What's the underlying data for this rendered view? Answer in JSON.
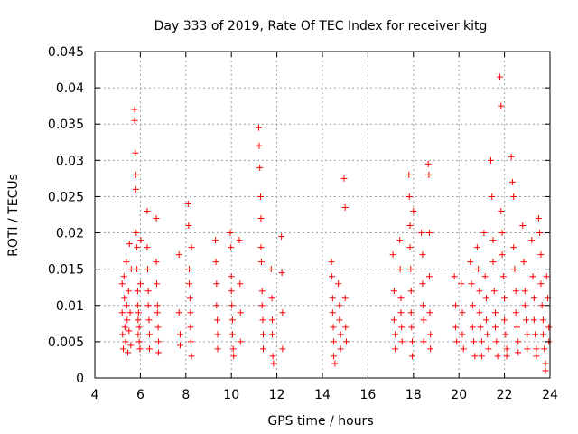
{
  "chart_data": {
    "type": "scatter",
    "title": "Day 333 of 2019, Rate Of TEC Index for receiver kitg",
    "xlabel": "GPS time / hours",
    "ylabel": "ROTI / TECUs",
    "xlim": [
      4,
      24
    ],
    "ylim": [
      0,
      0.045
    ],
    "x_ticks": [
      4,
      6,
      8,
      10,
      12,
      14,
      16,
      18,
      20,
      22,
      24
    ],
    "x_tick_labels": [
      "4",
      "6",
      "8",
      "10",
      "12",
      "14",
      "16",
      "18",
      "20",
      "22",
      "24"
    ],
    "y_ticks": [
      0,
      0.005,
      0.01,
      0.015,
      0.02,
      0.025,
      0.03,
      0.035,
      0.04,
      0.045
    ],
    "y_tick_labels": [
      "0",
      "0.005",
      "0.01",
      "0.015",
      "0.02",
      "0.025",
      "0.03",
      "0.035",
      "0.04",
      "0.045"
    ],
    "grid": true,
    "marker": "+",
    "marker_color": "#ff0000",
    "series": [
      {
        "name": "kitg",
        "points": [
          [
            5.2,
            0.013
          ],
          [
            5.2,
            0.009
          ],
          [
            5.22,
            0.006
          ],
          [
            5.25,
            0.004
          ],
          [
            5.28,
            0.014
          ],
          [
            5.3,
            0.011
          ],
          [
            5.32,
            0.007
          ],
          [
            5.35,
            0.005
          ],
          [
            5.38,
            0.016
          ],
          [
            5.4,
            0.01
          ],
          [
            5.42,
            0.008
          ],
          [
            5.45,
            0.0035
          ],
          [
            5.48,
            0.012
          ],
          [
            5.5,
            0.0065
          ],
          [
            5.52,
            0.0185
          ],
          [
            5.55,
            0.009
          ],
          [
            5.58,
            0.0045
          ],
          [
            5.6,
            0.015
          ],
          [
            5.75,
            0.037
          ],
          [
            5.75,
            0.0355
          ],
          [
            5.78,
            0.031
          ],
          [
            5.8,
            0.028
          ],
          [
            5.8,
            0.026
          ],
          [
            5.82,
            0.02
          ],
          [
            5.85,
            0.018
          ],
          [
            5.85,
            0.015
          ],
          [
            5.88,
            0.012
          ],
          [
            5.88,
            0.01
          ],
          [
            5.9,
            0.008
          ],
          [
            5.9,
            0.006
          ],
          [
            5.92,
            0.009
          ],
          [
            5.95,
            0.007
          ],
          [
            5.95,
            0.005
          ],
          [
            5.98,
            0.004
          ],
          [
            6.0,
            0.013
          ],
          [
            6.02,
            0.019
          ],
          [
            6.3,
            0.023
          ],
          [
            6.3,
            0.018
          ],
          [
            6.32,
            0.015
          ],
          [
            6.35,
            0.012
          ],
          [
            6.35,
            0.01
          ],
          [
            6.38,
            0.008
          ],
          [
            6.4,
            0.006
          ],
          [
            6.4,
            0.004
          ],
          [
            6.7,
            0.022
          ],
          [
            6.7,
            0.016
          ],
          [
            6.72,
            0.013
          ],
          [
            6.75,
            0.01
          ],
          [
            6.75,
            0.009
          ],
          [
            6.78,
            0.007
          ],
          [
            6.8,
            0.005
          ],
          [
            6.8,
            0.0035
          ],
          [
            7.7,
            0.017
          ],
          [
            7.7,
            0.009
          ],
          [
            7.75,
            0.006
          ],
          [
            7.75,
            0.0045
          ],
          [
            8.1,
            0.024
          ],
          [
            8.12,
            0.021
          ],
          [
            8.15,
            0.015
          ],
          [
            8.15,
            0.013
          ],
          [
            8.18,
            0.011
          ],
          [
            8.2,
            0.009
          ],
          [
            8.2,
            0.007
          ],
          [
            8.22,
            0.005
          ],
          [
            8.25,
            0.003
          ],
          [
            8.25,
            0.018
          ],
          [
            9.3,
            0.019
          ],
          [
            9.32,
            0.016
          ],
          [
            9.35,
            0.013
          ],
          [
            9.35,
            0.01
          ],
          [
            9.38,
            0.008
          ],
          [
            9.4,
            0.006
          ],
          [
            9.4,
            0.004
          ],
          [
            9.95,
            0.02
          ],
          [
            9.98,
            0.018
          ],
          [
            10.0,
            0.014
          ],
          [
            10.0,
            0.012
          ],
          [
            10.02,
            0.01
          ],
          [
            10.05,
            0.008
          ],
          [
            10.05,
            0.006
          ],
          [
            10.08,
            0.004
          ],
          [
            10.1,
            0.003
          ],
          [
            10.35,
            0.019
          ],
          [
            10.38,
            0.013
          ],
          [
            10.4,
            0.009
          ],
          [
            10.4,
            0.005
          ],
          [
            11.2,
            0.0345
          ],
          [
            11.22,
            0.032
          ],
          [
            11.25,
            0.029
          ],
          [
            11.28,
            0.025
          ],
          [
            11.3,
            0.022
          ],
          [
            11.3,
            0.018
          ],
          [
            11.32,
            0.016
          ],
          [
            11.35,
            0.012
          ],
          [
            11.35,
            0.01
          ],
          [
            11.38,
            0.008
          ],
          [
            11.4,
            0.006
          ],
          [
            11.4,
            0.004
          ],
          [
            11.75,
            0.015
          ],
          [
            11.78,
            0.011
          ],
          [
            11.8,
            0.008
          ],
          [
            11.8,
            0.006
          ],
          [
            11.82,
            0.003
          ],
          [
            11.85,
            0.002
          ],
          [
            12.2,
            0.0195
          ],
          [
            12.22,
            0.0145
          ],
          [
            12.25,
            0.009
          ],
          [
            12.25,
            0.004
          ],
          [
            14.4,
            0.016
          ],
          [
            14.42,
            0.014
          ],
          [
            14.45,
            0.011
          ],
          [
            14.45,
            0.009
          ],
          [
            14.48,
            0.007
          ],
          [
            14.5,
            0.005
          ],
          [
            14.5,
            0.003
          ],
          [
            14.55,
            0.002
          ],
          [
            14.7,
            0.013
          ],
          [
            14.75,
            0.01
          ],
          [
            14.75,
            0.008
          ],
          [
            14.8,
            0.006
          ],
          [
            14.8,
            0.004
          ],
          [
            14.95,
            0.0275
          ],
          [
            15.0,
            0.0235
          ],
          [
            15.0,
            0.011
          ],
          [
            15.02,
            0.007
          ],
          [
            15.05,
            0.005
          ],
          [
            17.1,
            0.017
          ],
          [
            17.15,
            0.012
          ],
          [
            17.15,
            0.008
          ],
          [
            17.2,
            0.006
          ],
          [
            17.2,
            0.004
          ],
          [
            17.4,
            0.019
          ],
          [
            17.42,
            0.015
          ],
          [
            17.45,
            0.011
          ],
          [
            17.45,
            0.009
          ],
          [
            17.48,
            0.007
          ],
          [
            17.5,
            0.005
          ],
          [
            17.8,
            0.028
          ],
          [
            17.82,
            0.025
          ],
          [
            17.85,
            0.021
          ],
          [
            17.85,
            0.018
          ],
          [
            17.88,
            0.015
          ],
          [
            17.9,
            0.012
          ],
          [
            17.9,
            0.009
          ],
          [
            17.92,
            0.007
          ],
          [
            17.95,
            0.005
          ],
          [
            17.95,
            0.003
          ],
          [
            18.0,
            0.023
          ],
          [
            18.35,
            0.02
          ],
          [
            18.4,
            0.017
          ],
          [
            18.4,
            0.013
          ],
          [
            18.42,
            0.01
          ],
          [
            18.45,
            0.008
          ],
          [
            18.45,
            0.005
          ],
          [
            18.65,
            0.0295
          ],
          [
            18.68,
            0.028
          ],
          [
            18.7,
            0.02
          ],
          [
            18.7,
            0.014
          ],
          [
            18.72,
            0.009
          ],
          [
            18.75,
            0.006
          ],
          [
            18.75,
            0.004
          ],
          [
            19.8,
            0.014
          ],
          [
            19.85,
            0.01
          ],
          [
            19.85,
            0.007
          ],
          [
            19.9,
            0.005
          ],
          [
            20.1,
            0.013
          ],
          [
            20.15,
            0.009
          ],
          [
            20.15,
            0.006
          ],
          [
            20.2,
            0.004
          ],
          [
            20.5,
            0.016
          ],
          [
            20.55,
            0.013
          ],
          [
            20.6,
            0.01
          ],
          [
            20.6,
            0.007
          ],
          [
            20.65,
            0.005
          ],
          [
            20.7,
            0.003
          ],
          [
            20.8,
            0.018
          ],
          [
            20.85,
            0.015
          ],
          [
            20.9,
            0.012
          ],
          [
            20.9,
            0.009
          ],
          [
            20.95,
            0.007
          ],
          [
            21.0,
            0.005
          ],
          [
            21.0,
            0.003
          ],
          [
            21.1,
            0.02
          ],
          [
            21.15,
            0.014
          ],
          [
            21.2,
            0.011
          ],
          [
            21.2,
            0.008
          ],
          [
            21.25,
            0.006
          ],
          [
            21.3,
            0.004
          ],
          [
            21.4,
            0.03
          ],
          [
            21.45,
            0.025
          ],
          [
            21.5,
            0.019
          ],
          [
            21.5,
            0.016
          ],
          [
            21.55,
            0.012
          ],
          [
            21.6,
            0.009
          ],
          [
            21.6,
            0.007
          ],
          [
            21.65,
            0.005
          ],
          [
            21.7,
            0.003
          ],
          [
            21.8,
            0.0415
          ],
          [
            21.85,
            0.0375
          ],
          [
            21.85,
            0.023
          ],
          [
            21.9,
            0.02
          ],
          [
            21.9,
            0.017
          ],
          [
            21.95,
            0.014
          ],
          [
            22.0,
            0.011
          ],
          [
            22.0,
            0.008
          ],
          [
            22.05,
            0.006
          ],
          [
            22.1,
            0.004
          ],
          [
            22.1,
            0.003
          ],
          [
            22.3,
            0.0305
          ],
          [
            22.35,
            0.027
          ],
          [
            22.4,
            0.025
          ],
          [
            22.4,
            0.018
          ],
          [
            22.45,
            0.015
          ],
          [
            22.5,
            0.012
          ],
          [
            22.5,
            0.009
          ],
          [
            22.55,
            0.007
          ],
          [
            22.6,
            0.005
          ],
          [
            22.6,
            0.0035
          ],
          [
            22.8,
            0.021
          ],
          [
            22.85,
            0.016
          ],
          [
            22.9,
            0.012
          ],
          [
            22.9,
            0.01
          ],
          [
            22.95,
            0.008
          ],
          [
            23.0,
            0.006
          ],
          [
            23.0,
            0.004
          ],
          [
            23.2,
            0.019
          ],
          [
            23.25,
            0.014
          ],
          [
            23.3,
            0.011
          ],
          [
            23.3,
            0.008
          ],
          [
            23.35,
            0.006
          ],
          [
            23.4,
            0.004
          ],
          [
            23.4,
            0.003
          ],
          [
            23.5,
            0.022
          ],
          [
            23.55,
            0.02
          ],
          [
            23.6,
            0.017
          ],
          [
            23.6,
            0.013
          ],
          [
            23.65,
            0.01
          ],
          [
            23.7,
            0.008
          ],
          [
            23.7,
            0.006
          ],
          [
            23.75,
            0.004
          ],
          [
            23.8,
            0.002
          ],
          [
            23.85,
            0.014
          ],
          [
            23.9,
            0.011
          ],
          [
            23.95,
            0.007
          ],
          [
            23.95,
            0.005
          ],
          [
            23.8,
            0.001
          ]
        ]
      }
    ]
  }
}
